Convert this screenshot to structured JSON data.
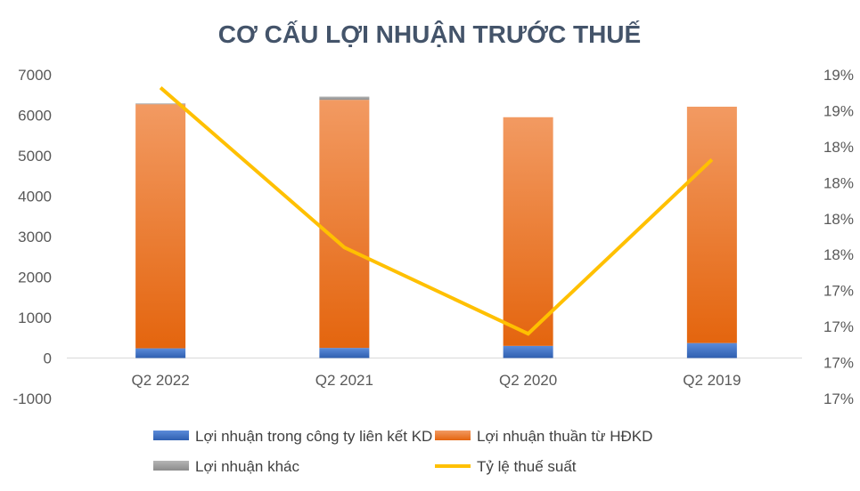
{
  "chart_data": {
    "type": "bar",
    "title": "CƠ CẤU LỢI NHUẬN TRƯỚC THUẾ",
    "categories": [
      "Q2 2022",
      "Q2 2021",
      "Q2 2020",
      "Q2 2019"
    ],
    "y_left": {
      "ticks": [
        -1000,
        0,
        1000,
        2000,
        3000,
        4000,
        5000,
        6000,
        7000
      ],
      "tick_labels": [
        "-1000",
        "0",
        "1000",
        "2000",
        "3000",
        "4000",
        "5000",
        "6000",
        "7000"
      ],
      "range": [
        -1000,
        7000
      ]
    },
    "y_right": {
      "tick_labels": [
        "17%",
        "17%",
        "17%",
        "17%",
        "18%",
        "18%",
        "18%",
        "18%",
        "19%",
        "19%"
      ],
      "range": [
        17.0,
        19.25
      ]
    },
    "stacked": true,
    "series": [
      {
        "name": "Lợi nhuận trong công ty liên kết KD",
        "kind": "bar",
        "axis": "left",
        "color": "#4472c4",
        "values": [
          240,
          250,
          300,
          370
        ]
      },
      {
        "name": "Lợi nhuận thuần từ HĐKD",
        "kind": "bar",
        "axis": "left",
        "color": "#ed7d31",
        "values": [
          6030,
          6130,
          5650,
          5840
        ]
      },
      {
        "name": "Lợi nhuận khác",
        "kind": "bar",
        "axis": "left",
        "color": "#a5a5a5",
        "values": [
          20,
          80,
          0,
          0
        ]
      },
      {
        "name": "Tỷ lệ thuế suất",
        "kind": "line",
        "axis": "right",
        "color": "#ffc000",
        "values": [
          19.16,
          18.05,
          17.45,
          18.66
        ]
      }
    ],
    "grid": false,
    "legend_position": "bottom"
  }
}
